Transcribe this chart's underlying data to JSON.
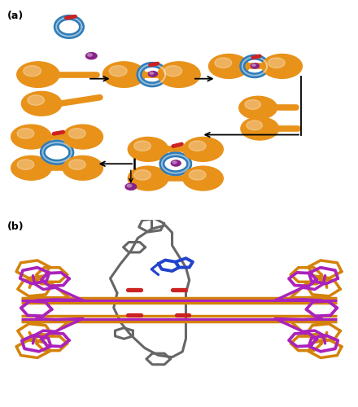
{
  "panel_a_label": "(a)",
  "panel_b_label": "(b)",
  "bg_color": "#ffffff",
  "orange": "#E8921A",
  "blue_ring": "#2E7CB8",
  "red_accent": "#CC2222",
  "purple_ball": "#882288",
  "gray": "#666666",
  "magenta": "#AA22BB",
  "blue_stick": "#2244CC",
  "red_stick": "#CC2222",
  "orange_stick": "#D4820A"
}
